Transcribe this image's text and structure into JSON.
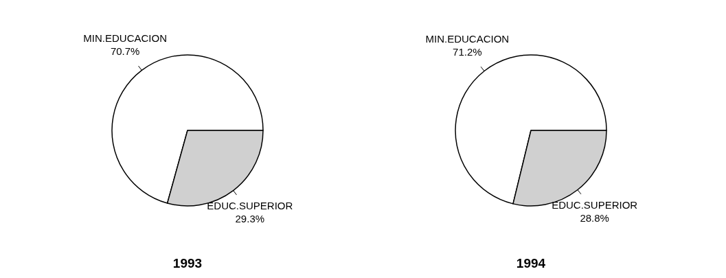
{
  "chart_data": [
    {
      "type": "pie",
      "title": "1993",
      "categories": [
        "MIN.EDUCACION",
        "EDUC.SUPERIOR"
      ],
      "values": [
        70.7,
        29.3
      ],
      "value_labels": [
        "70.7%",
        "29.3%"
      ],
      "colors": [
        "#ffffff",
        "#d0d0d0"
      ]
    },
    {
      "type": "pie",
      "title": "1994",
      "categories": [
        "MIN.EDUCACION",
        "EDUC.SUPERIOR"
      ],
      "values": [
        71.2,
        28.8
      ],
      "value_labels": [
        "71.2%",
        "28.8%"
      ],
      "colors": [
        "#ffffff",
        "#d0d0d0"
      ]
    }
  ]
}
